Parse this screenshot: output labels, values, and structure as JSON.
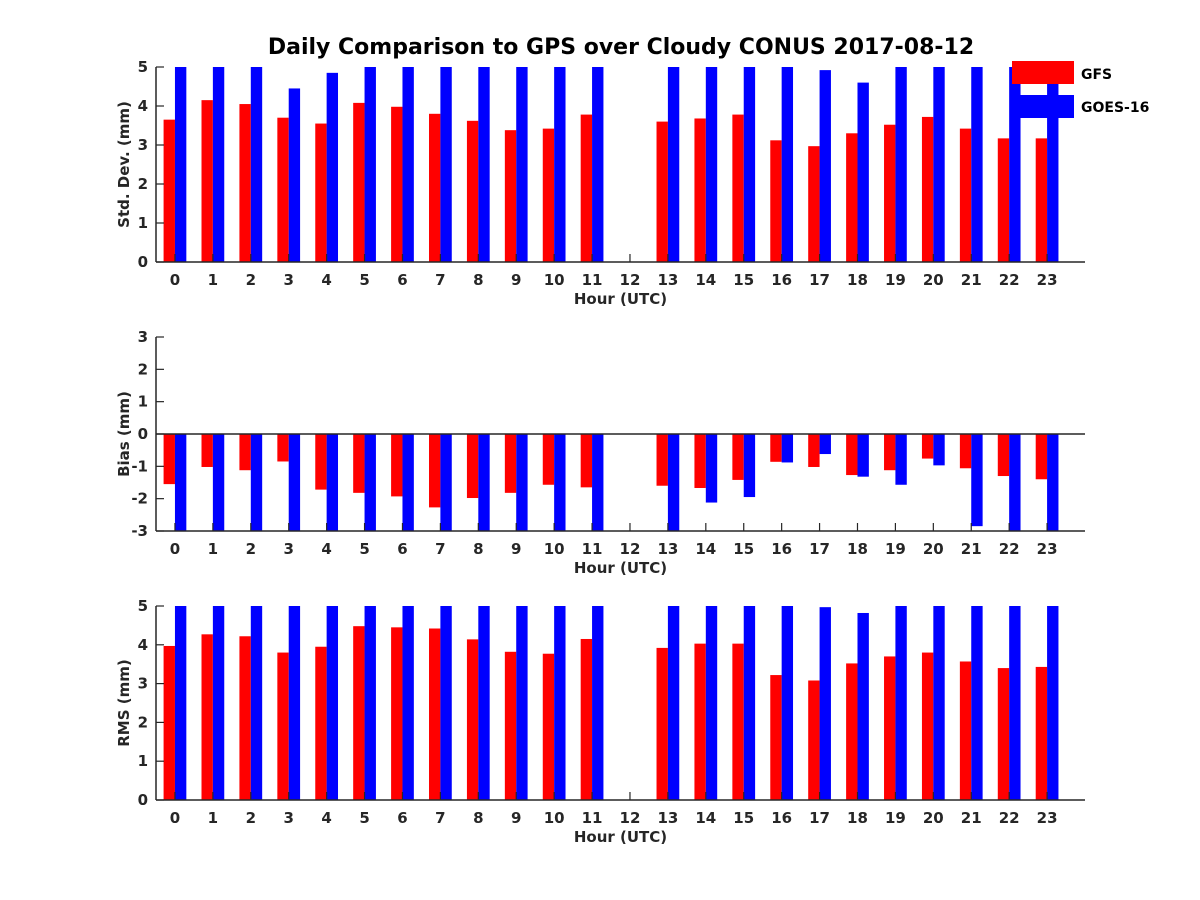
{
  "title": "Daily Comparison to GPS over Cloudy CONUS 2017-08-12",
  "colors": {
    "GFS": "#ff0000",
    "GOES-16": "#0000ff",
    "axis": "#262626"
  },
  "legend": {
    "placement": "top-right",
    "entries": [
      "GFS",
      "GOES-16"
    ]
  },
  "chart_data": [
    {
      "type": "bar",
      "ylabel": "Std. Dev. (mm)",
      "xlabel": "Hour (UTC)",
      "ylim": [
        0,
        5
      ],
      "yticks": [
        0,
        1,
        2,
        3,
        4,
        5
      ],
      "categories": [
        "0",
        "1",
        "2",
        "3",
        "4",
        "5",
        "6",
        "7",
        "8",
        "9",
        "10",
        "11",
        "12",
        "13",
        "14",
        "15",
        "16",
        "17",
        "18",
        "19",
        "20",
        "21",
        "22",
        "23"
      ],
      "grid": false,
      "series": [
        {
          "name": "GFS",
          "values": [
            3.65,
            4.15,
            4.05,
            3.7,
            3.55,
            4.08,
            3.98,
            3.8,
            3.62,
            3.38,
            3.42,
            3.78,
            null,
            3.6,
            3.68,
            3.78,
            3.12,
            2.97,
            3.3,
            3.52,
            3.72,
            3.42,
            3.17,
            3.17
          ]
        },
        {
          "name": "GOES-16",
          "values": [
            5.2,
            5.2,
            5.2,
            4.45,
            4.85,
            5.2,
            5.2,
            5.2,
            5.2,
            5.2,
            5.2,
            5.2,
            null,
            5.2,
            5.2,
            5.2,
            5.2,
            4.92,
            4.6,
            5.2,
            5.2,
            5.2,
            5.2,
            5.2
          ]
        }
      ]
    },
    {
      "type": "bar",
      "ylabel": "Bias (mm)",
      "xlabel": "Hour (UTC)",
      "ylim": [
        -3,
        3
      ],
      "yticks": [
        -3,
        -2,
        -1,
        0,
        1,
        2,
        3
      ],
      "categories": [
        "0",
        "1",
        "2",
        "3",
        "4",
        "5",
        "6",
        "7",
        "8",
        "9",
        "10",
        "11",
        "12",
        "13",
        "14",
        "15",
        "16",
        "17",
        "18",
        "19",
        "20",
        "21",
        "22",
        "23"
      ],
      "grid": false,
      "series": [
        {
          "name": "GFS",
          "values": [
            -1.55,
            -1.02,
            -1.12,
            -0.85,
            -1.72,
            -1.82,
            -1.93,
            -2.27,
            -1.98,
            -1.82,
            -1.57,
            -1.65,
            null,
            -1.6,
            -1.67,
            -1.42,
            -0.86,
            -1.02,
            -1.27,
            -1.12,
            -0.76,
            -1.06,
            -1.3,
            -1.4
          ]
        },
        {
          "name": "GOES-16",
          "values": [
            -3.2,
            -3.2,
            -3.2,
            -3.2,
            -3.2,
            -3.2,
            -3.2,
            -3.2,
            -3.2,
            -3.2,
            -3.2,
            -3.2,
            null,
            -3.2,
            -2.12,
            -1.95,
            -0.88,
            -0.62,
            -1.32,
            -1.57,
            -0.97,
            -2.85,
            -3.2,
            -3.2
          ]
        }
      ]
    },
    {
      "type": "bar",
      "ylabel": "RMS (mm)",
      "xlabel": "Hour (UTC)",
      "ylim": [
        0,
        5
      ],
      "yticks": [
        0,
        1,
        2,
        3,
        4,
        5
      ],
      "categories": [
        "0",
        "1",
        "2",
        "3",
        "4",
        "5",
        "6",
        "7",
        "8",
        "9",
        "10",
        "11",
        "12",
        "13",
        "14",
        "15",
        "16",
        "17",
        "18",
        "19",
        "20",
        "21",
        "22",
        "23"
      ],
      "grid": false,
      "series": [
        {
          "name": "GFS",
          "values": [
            3.97,
            4.27,
            4.22,
            3.8,
            3.95,
            4.48,
            4.45,
            4.42,
            4.14,
            3.82,
            3.77,
            4.15,
            null,
            3.92,
            4.03,
            4.03,
            3.22,
            3.08,
            3.52,
            3.7,
            3.8,
            3.57,
            3.4,
            3.43
          ]
        },
        {
          "name": "GOES-16",
          "values": [
            5.2,
            5.2,
            5.2,
            5.2,
            5.2,
            5.2,
            5.2,
            5.2,
            5.2,
            5.2,
            5.2,
            5.2,
            null,
            5.2,
            5.2,
            5.2,
            5.2,
            4.97,
            4.82,
            5.2,
            5.2,
            5.2,
            5.2,
            5.2
          ]
        }
      ]
    }
  ]
}
